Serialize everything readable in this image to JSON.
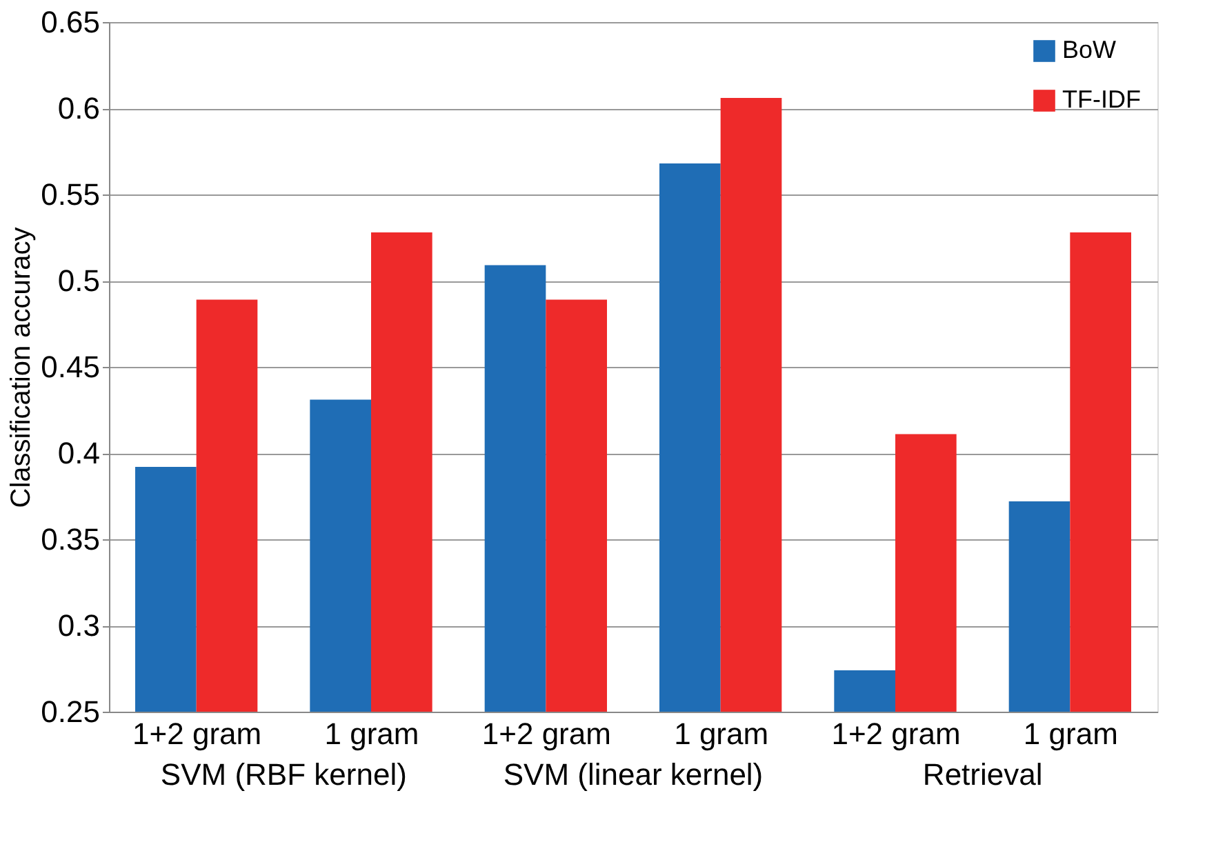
{
  "chart_data": {
    "type": "bar",
    "ylabel": "Classification accuracy",
    "categories": [
      "1+2 gram",
      "1 gram",
      "1+2 gram",
      "1 gram",
      "1+2 gram",
      "1 gram"
    ],
    "series": [
      {
        "name": "BoW",
        "color": "#1f6db5",
        "values": [
          0.392,
          0.431,
          0.509,
          0.568,
          0.274,
          0.372
        ]
      },
      {
        "name": "TF-IDF",
        "color": "#ee2a2a",
        "values": [
          0.489,
          0.528,
          0.489,
          0.606,
          0.411,
          0.528
        ]
      }
    ],
    "annotations": [
      "SVM (RBF kernel)",
      "SVM (linear kernel)",
      "Retrieval"
    ],
    "ylim": [
      0.25,
      0.65
    ],
    "yticks": [
      0.25,
      0.3,
      0.35,
      0.4,
      0.45,
      0.5,
      0.55,
      0.6,
      0.65
    ],
    "grid": "y",
    "legend": "top right"
  }
}
